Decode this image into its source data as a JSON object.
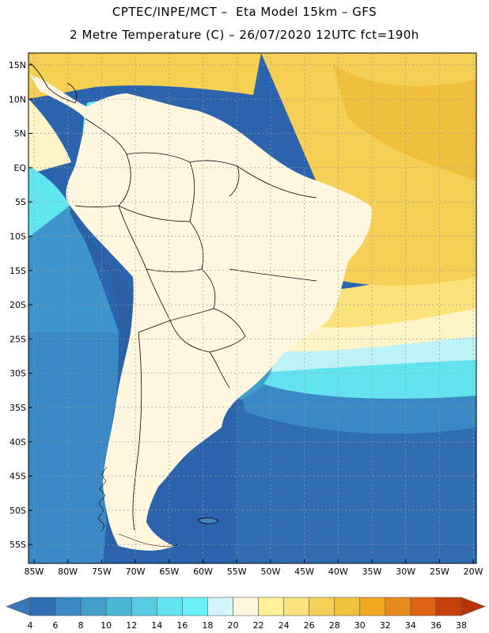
{
  "header": {
    "line1": "CPTEC/INPE/MCT –  Eta Model 15km – GFS",
    "line2": "2 Metre Temperature (C) – 26/07/2020 12UTC fct=190h"
  },
  "map": {
    "lat_labels": [
      "15N",
      "10N",
      "5N",
      "EQ",
      "5S",
      "10S",
      "15S",
      "20S",
      "25S",
      "30S",
      "35S",
      "40S",
      "45S",
      "50S",
      "55S"
    ],
    "lon_labels": [
      "85W",
      "80W",
      "75W",
      "70W",
      "65W",
      "60W",
      "55W",
      "50W",
      "45W",
      "40W",
      "35W",
      "30W",
      "25W",
      "20W"
    ],
    "colors": {
      "ocean_cold": "#2b64ad",
      "ocean_mid": "#3e95cb",
      "ocean_cyan": "#5fe6ee",
      "ocean_light": "#bdf3f6",
      "ocean_cream": "#fff4c8",
      "tropical_yellow": "#f6d052",
      "tropical_orange": "#f1bf3e",
      "land_cream": "#fff8df",
      "land_yellow": "#fdeb9a",
      "land_cyan": "#8ae9ef",
      "land_blue": "#3e84c0",
      "land_darkblue": "#2d5fa3",
      "border": "#000000",
      "grid": "#9a9a9a"
    }
  },
  "colorbar": {
    "labels": [
      "4",
      "6",
      "8",
      "10",
      "12",
      "14",
      "16",
      "18",
      "20",
      "22",
      "24",
      "26",
      "28",
      "30",
      "32",
      "34",
      "36",
      "38"
    ],
    "colors": [
      "#3a77b8",
      "#2f6cb0",
      "#3b89c4",
      "#429fcc",
      "#4ab6d8",
      "#57cde4",
      "#62e3ef",
      "#69f0f8",
      "#d1f7fb",
      "#fff8e1",
      "#fff29a",
      "#fbe27a",
      "#f6cf56",
      "#f1c23e",
      "#f0aa1f",
      "#e88a1c",
      "#dc6412",
      "#c5400a",
      "#b8330a"
    ]
  }
}
